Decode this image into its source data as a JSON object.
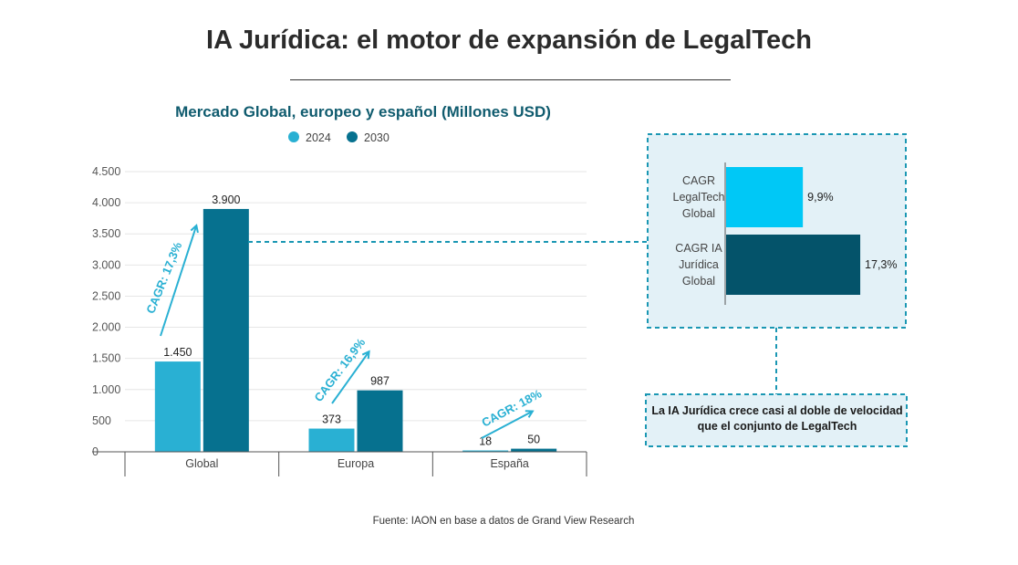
{
  "title": "IA Jurídica: el motor de expansión de LegalTech",
  "source": "Fuente: IAON en base a datos de Grand View Research",
  "colors": {
    "series_2024": "#29b0d3",
    "series_2030": "#06718f",
    "cagr": "#29b0d3",
    "panel_bg": "#e3f1f7",
    "panel_border": "#1a97b3",
    "bar_legaltech": "#00c8f6",
    "bar_ia": "#04536a"
  },
  "chart_data": [
    {
      "type": "bar",
      "title": "Mercado Global, europeo y español (Millones USD)",
      "categories": [
        "Global",
        "Europa",
        "España"
      ],
      "series": [
        {
          "name": "2024",
          "values": [
            1450,
            373,
            18
          ],
          "labels": [
            "1.450",
            "373",
            "18"
          ]
        },
        {
          "name": "2030",
          "values": [
            3900,
            987,
            50
          ],
          "labels": [
            "3.900",
            "987",
            "50"
          ]
        }
      ],
      "ylim": [
        0,
        4500
      ],
      "yticks": [
        0,
        500,
        1000,
        1500,
        2000,
        2500,
        3000,
        3500,
        4000,
        4500
      ],
      "ytick_labels": [
        "0",
        "500",
        "1.000",
        "1.500",
        "2.000",
        "2.500",
        "3.000",
        "3.500",
        "4.000",
        "4.500"
      ],
      "annotations": [
        "CAGR: 17,3%",
        "CAGR: 16,9%",
        "CAGR: 18%"
      ],
      "xlabel": "",
      "ylabel": "",
      "legend": "top"
    },
    {
      "type": "bar",
      "orientation": "horizontal",
      "categories": [
        "CAGR\nLegalTech\nGlobal",
        "CAGR IA\nJurídica\nGlobal"
      ],
      "values": [
        9.9,
        17.3
      ],
      "labels": [
        "9,9%",
        "17,3%"
      ],
      "xlim": [
        0,
        20
      ]
    }
  ],
  "note": "La IA Jurídica crece casi al doble de velocidad que el conjunto de LegalTech"
}
